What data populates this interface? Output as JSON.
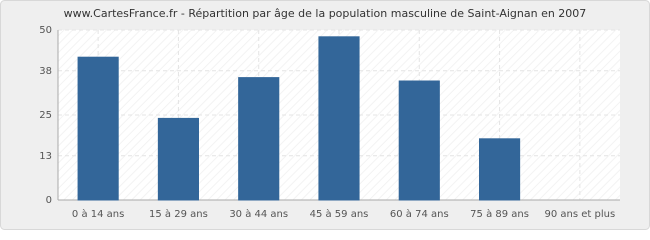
{
  "chart_data": {
    "type": "bar",
    "title": "www.CartesFrance.fr - Répartition par âge de la population masculine de Saint-Aignan en 2007",
    "categories": [
      "0 à 14 ans",
      "15 à 29 ans",
      "30 à 44 ans",
      "45 à 59 ans",
      "60 à 74 ans",
      "75 à 89 ans",
      "90 ans et plus"
    ],
    "values": [
      42,
      24,
      36,
      48,
      35,
      18,
      0
    ],
    "color": "#336699",
    "ylim": [
      0,
      50
    ],
    "yticks": [
      0,
      13,
      25,
      38,
      50
    ],
    "grid": true
  }
}
